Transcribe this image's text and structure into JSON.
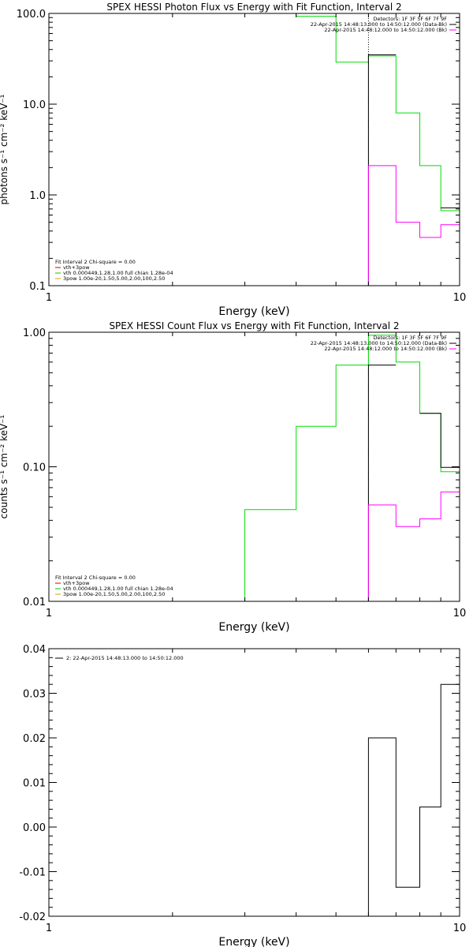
{
  "chart_data": [
    {
      "type": "line",
      "title": "SPEX HESSI Photon Flux vs Energy with Fit Function, Interval 2",
      "xlabel": "Energy (keV)",
      "ylabel": "photons s⁻¹ cm⁻² keV⁻¹",
      "xscale": "log",
      "yscale": "log",
      "xlim": [
        1,
        10
      ],
      "ylim": [
        0.1,
        100
      ],
      "x_ticks": [
        {
          "value": 1,
          "label": "1"
        },
        {
          "value": 10,
          "label": "10"
        }
      ],
      "y_ticks": [
        {
          "value": 0.1,
          "label": "0.1"
        },
        {
          "value": 1,
          "label": "1.0"
        },
        {
          "value": 10,
          "label": "10.0"
        },
        {
          "value": 100,
          "label": "100.0"
        }
      ],
      "legend_top": [
        {
          "text": "Detectors: 1F 3F 5F 6F 7F 9F",
          "color": ""
        },
        {
          "text": "22-Apr-2015 14:48:13.000 to 14:50:12.000 (Data-Bk)",
          "color": "#000000"
        },
        {
          "text": "22-Apr-2015 14:48:12.000 to 14:50:12.000 (Bk)",
          "color": "#ff00ff"
        }
      ],
      "legend_bottom": [
        {
          "text": "Fit Interval 2   Chi-square = 0.00",
          "color": ""
        },
        {
          "text": "vth+3pow",
          "color": "#cc0000"
        },
        {
          "text": "vth 0.000449,1.28,1.00   full chian 1.28e-04",
          "color": "#00cc00"
        },
        {
          "text": "3pow 1.00e-20,1.50,5.00,2.00,100,2.50",
          "color": "#e0a000"
        }
      ],
      "vline_x": 6.0,
      "series": [
        {
          "name": "vth",
          "color": "#00dd00",
          "x": [
            1,
            3.0,
            3.0,
            4.0,
            4.0,
            5.0,
            5.0,
            6.0,
            6.0,
            7.0,
            7.0,
            8.0,
            8.0,
            9.0,
            9.0,
            10.0
          ],
          "y": [
            null,
            null,
            100,
            100,
            93,
            93,
            29,
            29,
            34,
            34,
            8,
            8,
            2.1,
            2.1,
            0.67,
            0.67
          ]
        },
        {
          "name": "Data-Bk",
          "color": "#000000",
          "x": [
            6.0,
            6.0,
            7.0,
            7.0,
            9.0,
            9.0,
            10.0
          ],
          "y": [
            0.1,
            35,
            35,
            null,
            null,
            0.72,
            0.72
          ]
        },
        {
          "name": "Bk",
          "color": "#ff00ff",
          "x": [
            6.0,
            6.0,
            7.0,
            7.0,
            8.0,
            8.0,
            9.0,
            9.0,
            10.0,
            10.0
          ],
          "y": [
            0.1,
            2.1,
            2.1,
            0.5,
            0.5,
            0.34,
            0.34,
            0.47,
            0.47,
            0.1
          ]
        }
      ]
    },
    {
      "type": "line",
      "title": "SPEX HESSI Count Flux vs Energy with Fit Function, Interval 2",
      "xlabel": "Energy (keV)",
      "ylabel": "counts s⁻¹ cm⁻² keV⁻¹",
      "xscale": "log",
      "yscale": "log",
      "xlim": [
        1,
        10
      ],
      "ylim": [
        0.01,
        1
      ],
      "x_ticks": [
        {
          "value": 1,
          "label": "1"
        },
        {
          "value": 10,
          "label": "10"
        }
      ],
      "y_ticks": [
        {
          "value": 0.01,
          "label": "0.01"
        },
        {
          "value": 0.1,
          "label": "0.10"
        },
        {
          "value": 1,
          "label": "1.00"
        }
      ],
      "legend_top": [
        {
          "text": "Detectors: 1F 3F 5F 6F 7F 9F",
          "color": ""
        },
        {
          "text": "22-Apr-2015 14:48:13.000 to 14:50:12.000 (Data-Bk)",
          "color": "#000000"
        },
        {
          "text": "22-Apr-2015 14:48:12.000 to 14:50:12.000 (Bk)",
          "color": "#ff00ff"
        }
      ],
      "legend_bottom": [
        {
          "text": "Fit Interval 2   Chi-square = 0.00",
          "color": ""
        },
        {
          "text": "vth+3pow",
          "color": "#cc0000"
        },
        {
          "text": "vth 0.000449,1.28,1.00   full chian 1.28e-04",
          "color": "#00cc00"
        },
        {
          "text": "3pow 1.00e-20,1.50,5.00,2.00,100,2.50",
          "color": "#e0a000"
        }
      ],
      "vline_x": 6.0,
      "series": [
        {
          "name": "vth",
          "color": "#00dd00",
          "x": [
            3.0,
            3.0,
            4.0,
            4.0,
            5.0,
            5.0,
            6.0,
            6.0,
            7.0,
            7.0,
            8.0,
            8.0,
            9.0,
            9.0,
            10.0
          ],
          "y": [
            0.01,
            0.048,
            0.048,
            0.2,
            0.2,
            0.57,
            0.57,
            0.95,
            0.95,
            0.6,
            0.6,
            0.25,
            0.25,
            0.092,
            0.092
          ]
        },
        {
          "name": "Data-Bk",
          "color": "#000000",
          "x": [
            6.0,
            6.0,
            7.0,
            7.0,
            8.0,
            8.0,
            9.0,
            9.0,
            10.0
          ],
          "y": [
            0.01,
            0.57,
            0.57,
            null,
            null,
            0.25,
            0.25,
            0.099,
            0.099
          ]
        },
        {
          "name": "Bk",
          "color": "#ff00ff",
          "x": [
            6.0,
            6.0,
            7.0,
            7.0,
            8.0,
            8.0,
            9.0,
            9.0,
            10.0,
            10.0
          ],
          "y": [
            0.01,
            0.052,
            0.052,
            0.036,
            0.036,
            0.041,
            0.041,
            0.065,
            0.065,
            0.01
          ]
        }
      ]
    },
    {
      "type": "line",
      "title": "",
      "xlabel": "Energy (keV)",
      "ylabel": "",
      "xscale": "log",
      "yscale": "linear",
      "xlim": [
        1,
        10
      ],
      "ylim": [
        -0.02,
        0.04
      ],
      "x_ticks": [
        {
          "value": 1,
          "label": "1"
        },
        {
          "value": 10,
          "label": "10"
        }
      ],
      "y_ticks": [
        {
          "value": -0.02,
          "label": "-0.02"
        },
        {
          "value": -0.01,
          "label": "-0.01"
        },
        {
          "value": 0,
          "label": "0.00"
        },
        {
          "value": 0.01,
          "label": "0.01"
        },
        {
          "value": 0.02,
          "label": "0.02"
        },
        {
          "value": 0.03,
          "label": "0.03"
        },
        {
          "value": 0.04,
          "label": "0.04"
        }
      ],
      "legend_top": [],
      "legend_bottom": [],
      "legend_inset": [
        {
          "text": "2: 22-Apr-2015 14:48:13.000 to 14:50:12.000",
          "color": "#000000"
        }
      ],
      "vline_x": null,
      "series": [
        {
          "name": "residual",
          "color": "#000000",
          "x": [
            6.0,
            6.0,
            7.0,
            7.0,
            8.0,
            8.0,
            9.0,
            9.0,
            10.0
          ],
          "y": [
            -0.02,
            0.02,
            0.02,
            -0.0135,
            -0.0135,
            0.0045,
            0.0045,
            0.032,
            0.032
          ]
        }
      ]
    }
  ]
}
